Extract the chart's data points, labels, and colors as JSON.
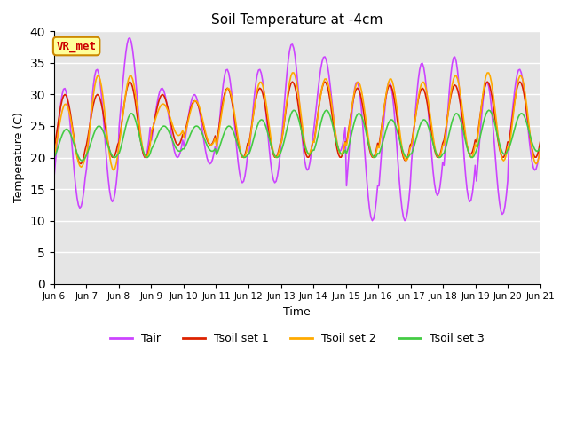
{
  "title": "Soil Temperature at -4cm",
  "xlabel": "Time",
  "ylabel": "Temperature (C)",
  "ylim": [
    0,
    40
  ],
  "yticks": [
    0,
    5,
    10,
    15,
    20,
    25,
    30,
    35,
    40
  ],
  "background_color": "#e5e5e5",
  "colors": {
    "Tair": "#cc44ff",
    "Tsoil1": "#dd2200",
    "Tsoil2": "#ffaa00",
    "Tsoil3": "#44cc44"
  },
  "annotation_text": "VR_met",
  "annotation_color": "#cc0000",
  "annotation_bg": "#ffff99",
  "annotation_border": "#cc8800",
  "xtick_labels": [
    "Jun 6",
    "Jun 7",
    "Jun 8",
    "Jun 9",
    "Jun 10",
    "Jun 11",
    "Jun 12",
    "Jun 13",
    "Jun 14",
    "Jun 15",
    "Jun 16",
    "Jun 17",
    "Jun 18",
    "Jun 19",
    "Jun 20",
    "Jun 21"
  ]
}
